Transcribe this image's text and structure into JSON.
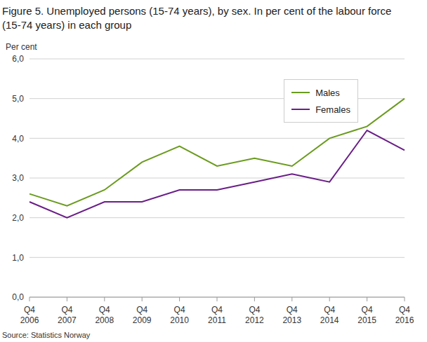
{
  "chart_data": {
    "type": "line",
    "title": "Figure 5. Unemployed persons (15-74 years), by sex. In per cent of the labour force (15-74 years) in each group",
    "y_label": "Per cent",
    "source": "Source: Statistics Norway",
    "categories": [
      "Q4 2006",
      "Q4 2007",
      "Q4 2008",
      "Q4 2009",
      "Q4 2010",
      "Q4 2011",
      "Q4 2012",
      "Q4 2013",
      "Q4 2014",
      "Q4 2015",
      "Q4 2016"
    ],
    "series": [
      {
        "name": "Males",
        "color": "#6a9b1e",
        "values": [
          2.6,
          2.3,
          2.7,
          3.4,
          3.8,
          3.3,
          3.5,
          3.3,
          4.0,
          4.3,
          5.0
        ]
      },
      {
        "name": "Females",
        "color": "#6a1e87",
        "values": [
          2.4,
          2.0,
          2.4,
          2.4,
          2.7,
          2.7,
          2.9,
          3.1,
          2.9,
          4.2,
          3.7
        ]
      }
    ],
    "ylim": [
      0,
      6
    ],
    "yticks": [
      {
        "value": 0,
        "label": "0,0"
      },
      {
        "value": 1,
        "label": "1,0"
      },
      {
        "value": 2,
        "label": "2,0"
      },
      {
        "value": 3,
        "label": "3,0"
      },
      {
        "value": 4,
        "label": "4,0"
      },
      {
        "value": 5,
        "label": "5,0"
      },
      {
        "value": 6,
        "label": "6,0"
      }
    ],
    "grid": true,
    "legend": "top right"
  }
}
